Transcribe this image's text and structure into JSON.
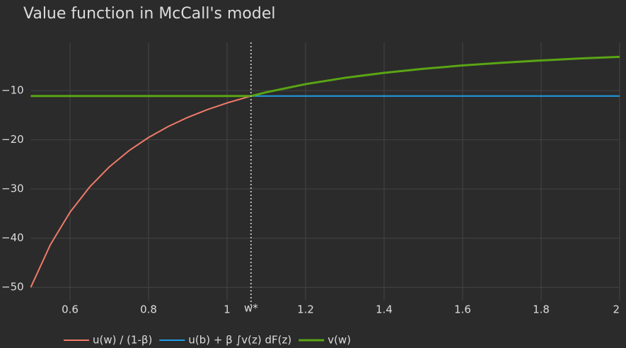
{
  "chart_data": {
    "type": "line",
    "title": "Value function in McCall's model",
    "xlim": [
      0.5,
      2
    ],
    "ylim": [
      -52.7,
      -0.2
    ],
    "xticks": [
      0.6,
      0.8,
      1,
      1.2,
      1.4,
      1.6,
      1.8,
      2
    ],
    "yticks": [
      {
        "value": -10,
        "label": "−10"
      },
      {
        "value": -20,
        "label": "−20"
      },
      {
        "value": -30,
        "label": "−30"
      },
      {
        "value": -40,
        "label": "−40"
      },
      {
        "value": -50,
        "label": "−50"
      }
    ],
    "grid": true,
    "legend": "bottom",
    "vline": {
      "x": 1.061,
      "label": "w*",
      "color": "#bbbbbb"
    },
    "series": [
      {
        "name": "u(w) / (1-β)",
        "color": "#f07b69",
        "x": [
          0.5,
          0.55,
          0.6,
          0.65,
          0.7,
          0.75,
          0.8,
          0.85,
          0.9,
          0.95,
          1.0,
          1.061
        ],
        "values": [
          -50,
          -41.32,
          -34.72,
          -29.59,
          -25.51,
          -22.22,
          -19.53,
          -17.3,
          -15.43,
          -13.85,
          -12.5,
          -11.1
        ]
      },
      {
        "name": "u(b) + β ∫v(z) dF(z)",
        "color": "#1f9ee8",
        "x": [
          0.5,
          2
        ],
        "values": [
          -11.1,
          -11.1
        ]
      },
      {
        "name": "v(w)",
        "color": "#5aa514",
        "x": [
          0.5,
          1.061,
          1.1,
          1.2,
          1.3,
          1.4,
          1.5,
          1.6,
          1.7,
          1.8,
          1.9,
          2.0
        ],
        "values": [
          -11.1,
          -11.1,
          -10.33,
          -8.68,
          -7.4,
          -6.38,
          -5.56,
          -4.88,
          -4.33,
          -3.86,
          -3.46,
          -3.13
        ]
      }
    ]
  }
}
